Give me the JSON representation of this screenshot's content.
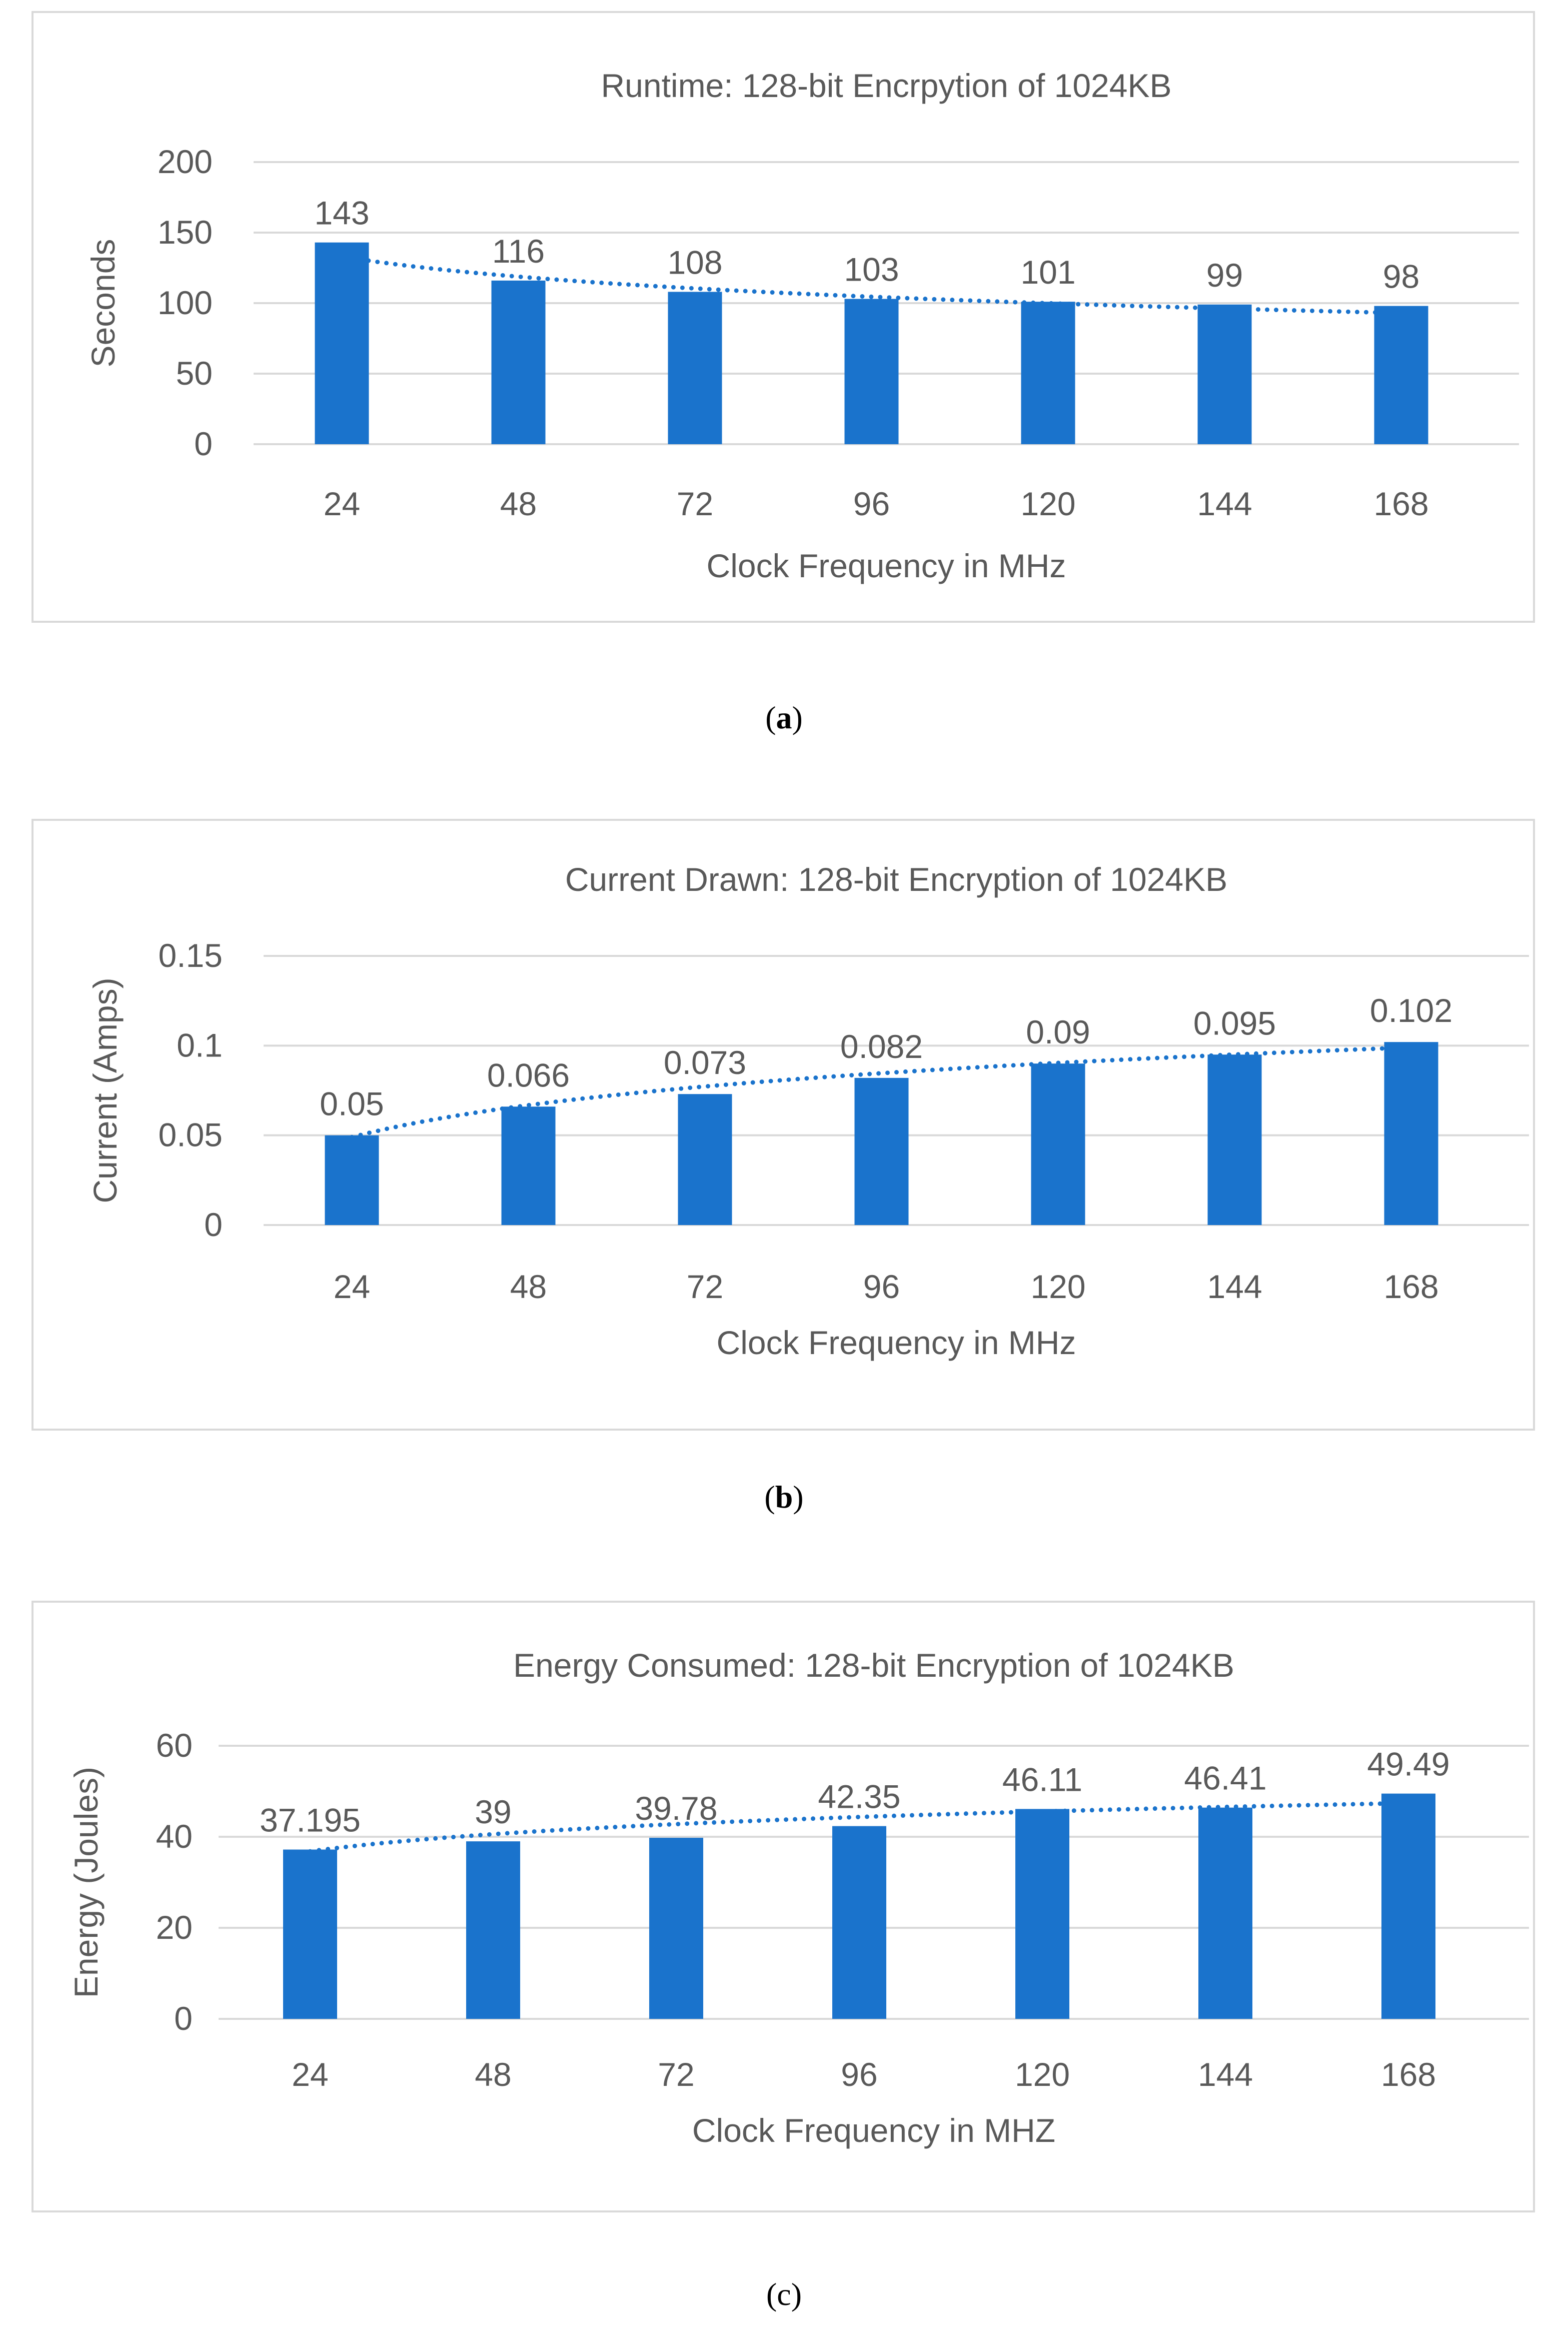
{
  "colors": {
    "bar": "#1a73cc",
    "trendline": "#1a73cc",
    "grid": "#d9d9d9",
    "text": "#595959",
    "border": "#d9d9d9"
  },
  "captions": {
    "a": {
      "open": "(",
      "letter": "a",
      "close": ")"
    },
    "b": {
      "open": "(",
      "letter": "b",
      "close": ")"
    },
    "c": {
      "open": "(",
      "letter": "c",
      "close": ")"
    }
  },
  "chart_data": [
    {
      "id": "a",
      "type": "bar",
      "title": "Runtime: 128-bit Encrpytion of 1024KB",
      "xlabel": "Clock Frequency in MHz",
      "ylabel": "Seconds",
      "categories": [
        "24",
        "48",
        "72",
        "96",
        "120",
        "144",
        "168"
      ],
      "values": [
        143,
        116,
        108,
        103,
        101,
        99,
        98
      ],
      "value_labels": [
        "143",
        "116",
        "108",
        "103",
        "101",
        "99",
        "98"
      ],
      "ylim": [
        0,
        200
      ],
      "yticks": [
        0,
        50,
        100,
        150,
        200
      ],
      "ytick_labels": [
        "0",
        "50",
        "100",
        "150",
        "200"
      ],
      "trendline": {
        "style": "dotted",
        "type": "logarithmic",
        "start": 133,
        "end": 93
      },
      "grid": true,
      "legend": "none"
    },
    {
      "id": "b",
      "type": "bar",
      "title": "Current Drawn: 128-bit Encryption of 1024KB",
      "xlabel": "Clock Frequency in MHz",
      "ylabel": "Current (Amps)",
      "categories": [
        "24",
        "48",
        "72",
        "96",
        "120",
        "144",
        "168"
      ],
      "values": [
        0.05,
        0.066,
        0.073,
        0.082,
        0.09,
        0.095,
        0.102
      ],
      "value_labels": [
        "0.05",
        "0.066",
        "0.073",
        "0.082",
        "0.09",
        "0.095",
        "0.102"
      ],
      "ylim": [
        0,
        0.15
      ],
      "yticks": [
        0,
        0.05,
        0.1,
        0.15
      ],
      "ytick_labels": [
        "0",
        "0.05",
        "0.1",
        "0.15"
      ],
      "trendline": {
        "style": "dotted",
        "type": "logarithmic",
        "start": 0.049,
        "end": 0.099
      },
      "grid": true,
      "legend": "none"
    },
    {
      "id": "c",
      "type": "bar",
      "title": "Energy Consumed: 128-bit Encryption of 1024KB",
      "xlabel": "Clock Frequency in MHZ",
      "ylabel": "Energy (Joules)",
      "categories": [
        "24",
        "48",
        "72",
        "96",
        "120",
        "144",
        "168"
      ],
      "values": [
        37.195,
        39,
        39.78,
        42.35,
        46.11,
        46.41,
        49.49
      ],
      "value_labels": [
        "37.195",
        "39",
        "39.78",
        "42.35",
        "46.11",
        "46.41",
        "49.49"
      ],
      "ylim": [
        0,
        60
      ],
      "yticks": [
        0,
        20,
        40,
        60
      ],
      "ytick_labels": [
        "0",
        "20",
        "40",
        "60"
      ],
      "trendline": {
        "style": "dotted",
        "type": "logarithmic",
        "start": 36.8,
        "end": 47.4
      },
      "grid": true,
      "legend": "none"
    }
  ]
}
